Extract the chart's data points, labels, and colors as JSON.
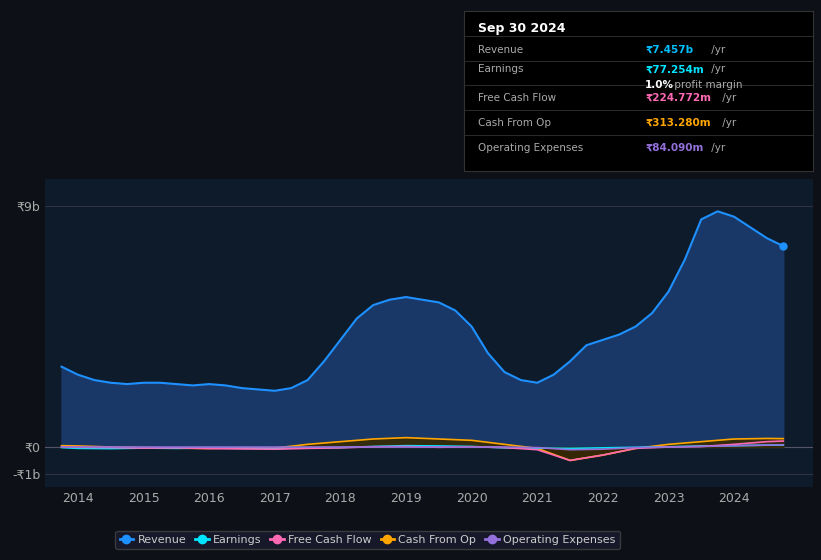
{
  "bg_color": "#0d1117",
  "plot_bg_color": "#0d1b2a",
  "title": "Sep 30 2024",
  "yticks_labels": [
    "₹9b",
    "₹0",
    "-₹1b"
  ],
  "yticks_values": [
    9000000000,
    0,
    -1000000000
  ],
  "xticks": [
    2014,
    2015,
    2016,
    2017,
    2018,
    2019,
    2020,
    2021,
    2022,
    2023,
    2024
  ],
  "ylim": [
    -1500000000,
    10000000000
  ],
  "xlim_start": 2013.5,
  "xlim_end": 2025.2,
  "series": {
    "revenue": {
      "color": "#1e90ff",
      "fill_color": "#1a3a6b",
      "label": "Revenue",
      "x": [
        2013.75,
        2014.0,
        2014.25,
        2014.5,
        2014.75,
        2015.0,
        2015.25,
        2015.5,
        2015.75,
        2016.0,
        2016.25,
        2016.5,
        2016.75,
        2017.0,
        2017.25,
        2017.5,
        2017.75,
        2018.0,
        2018.25,
        2018.5,
        2018.75,
        2019.0,
        2019.25,
        2019.5,
        2019.75,
        2020.0,
        2020.25,
        2020.5,
        2020.75,
        2021.0,
        2021.25,
        2021.5,
        2021.75,
        2022.0,
        2022.25,
        2022.5,
        2022.75,
        2023.0,
        2023.25,
        2023.5,
        2023.75,
        2024.0,
        2024.25,
        2024.5,
        2024.75
      ],
      "y": [
        3000000000,
        2700000000,
        2500000000,
        2400000000,
        2350000000,
        2400000000,
        2400000000,
        2350000000,
        2300000000,
        2350000000,
        2300000000,
        2200000000,
        2150000000,
        2100000000,
        2200000000,
        2500000000,
        3200000000,
        4000000000,
        4800000000,
        5300000000,
        5500000000,
        5600000000,
        5500000000,
        5400000000,
        5100000000,
        4500000000,
        3500000000,
        2800000000,
        2500000000,
        2400000000,
        2700000000,
        3200000000,
        3800000000,
        4000000000,
        4200000000,
        4500000000,
        5000000000,
        5800000000,
        7000000000,
        8500000000,
        8800000000,
        8600000000,
        8200000000,
        7800000000,
        7500000000
      ]
    },
    "earnings": {
      "color": "#00e5ff",
      "label": "Earnings",
      "x": [
        2013.75,
        2014.0,
        2014.5,
        2015.0,
        2015.5,
        2016.0,
        2016.5,
        2017.0,
        2017.5,
        2018.0,
        2018.5,
        2019.0,
        2019.5,
        2020.0,
        2020.5,
        2021.0,
        2021.5,
        2022.0,
        2022.5,
        2023.0,
        2023.5,
        2024.0,
        2024.5,
        2024.75
      ],
      "y": [
        -20000000,
        -50000000,
        -60000000,
        -40000000,
        -50000000,
        -40000000,
        -50000000,
        -60000000,
        -30000000,
        -20000000,
        20000000,
        50000000,
        40000000,
        20000000,
        -30000000,
        -40000000,
        -50000000,
        -30000000,
        -10000000,
        10000000,
        40000000,
        50000000,
        70000000,
        77000000
      ]
    },
    "free_cash_flow": {
      "color": "#ff69b4",
      "label": "Free Cash Flow",
      "x": [
        2013.75,
        2014.0,
        2014.5,
        2015.0,
        2015.5,
        2016.0,
        2016.5,
        2017.0,
        2017.5,
        2018.0,
        2018.5,
        2019.0,
        2019.5,
        2020.0,
        2020.5,
        2021.0,
        2021.5,
        2022.0,
        2022.5,
        2023.0,
        2023.5,
        2024.0,
        2024.5,
        2024.75
      ],
      "y": [
        0,
        -10000000,
        -20000000,
        -40000000,
        -30000000,
        -60000000,
        -70000000,
        -80000000,
        -50000000,
        -30000000,
        10000000,
        20000000,
        -10000000,
        10000000,
        -20000000,
        -100000000,
        -500000000,
        -300000000,
        -50000000,
        0,
        20000000,
        100000000,
        200000000,
        224000000
      ]
    },
    "cash_from_op": {
      "color": "#ffa500",
      "fill_color": "#3a2a00",
      "label": "Cash From Op",
      "x": [
        2013.75,
        2014.0,
        2014.5,
        2015.0,
        2015.5,
        2016.0,
        2016.5,
        2017.0,
        2017.5,
        2018.0,
        2018.5,
        2019.0,
        2019.5,
        2020.0,
        2020.5,
        2021.0,
        2021.5,
        2022.0,
        2022.5,
        2023.0,
        2023.5,
        2024.0,
        2024.5,
        2024.75
      ],
      "y": [
        50000000,
        40000000,
        0,
        -20000000,
        -40000000,
        -50000000,
        -30000000,
        -40000000,
        100000000,
        200000000,
        300000000,
        350000000,
        300000000,
        250000000,
        100000000,
        -50000000,
        -500000000,
        -300000000,
        -50000000,
        100000000,
        200000000,
        300000000,
        320000000,
        313000000
      ]
    },
    "operating_expenses": {
      "color": "#9370db",
      "label": "Operating Expenses",
      "x": [
        2013.75,
        2014.0,
        2014.5,
        2015.0,
        2015.5,
        2016.0,
        2016.5,
        2017.0,
        2017.5,
        2018.0,
        2018.5,
        2019.0,
        2019.5,
        2020.0,
        2020.5,
        2021.0,
        2021.5,
        2022.0,
        2022.5,
        2023.0,
        2023.5,
        2024.0,
        2024.5,
        2024.75
      ],
      "y": [
        0,
        0,
        0,
        0,
        0,
        0,
        0,
        0,
        0,
        0,
        0,
        0,
        0,
        0,
        0,
        -20000000,
        -100000000,
        -80000000,
        -20000000,
        0,
        20000000,
        50000000,
        70000000,
        84000000
      ]
    }
  },
  "legend": [
    {
      "label": "Revenue",
      "color": "#1e90ff"
    },
    {
      "label": "Earnings",
      "color": "#00e5ff"
    },
    {
      "label": "Free Cash Flow",
      "color": "#ff69b4"
    },
    {
      "label": "Cash From Op",
      "color": "#ffa500"
    },
    {
      "label": "Operating Expenses",
      "color": "#9370db"
    }
  ],
  "info_box": {
    "title": "Sep 30 2024",
    "rows": [
      {
        "label": "Revenue",
        "value": "₹7.457b",
        "suffix": " /yr",
        "value_color": "#00bfff"
      },
      {
        "label": "Earnings",
        "value": "₹77.254m",
        "suffix": " /yr",
        "value_color": "#00e5ff"
      },
      {
        "label": "",
        "bold_value": "1.0%",
        "rest": " profit margin",
        "value_color": "#ffffff"
      },
      {
        "label": "Free Cash Flow",
        "value": "₹224.772m",
        "suffix": " /yr",
        "value_color": "#ff69b4"
      },
      {
        "label": "Cash From Op",
        "value": "₹313.280m",
        "suffix": " /yr",
        "value_color": "#ffa500"
      },
      {
        "label": "Operating Expenses",
        "value": "₹84.090m",
        "suffix": " /yr",
        "value_color": "#9370db"
      }
    ]
  }
}
